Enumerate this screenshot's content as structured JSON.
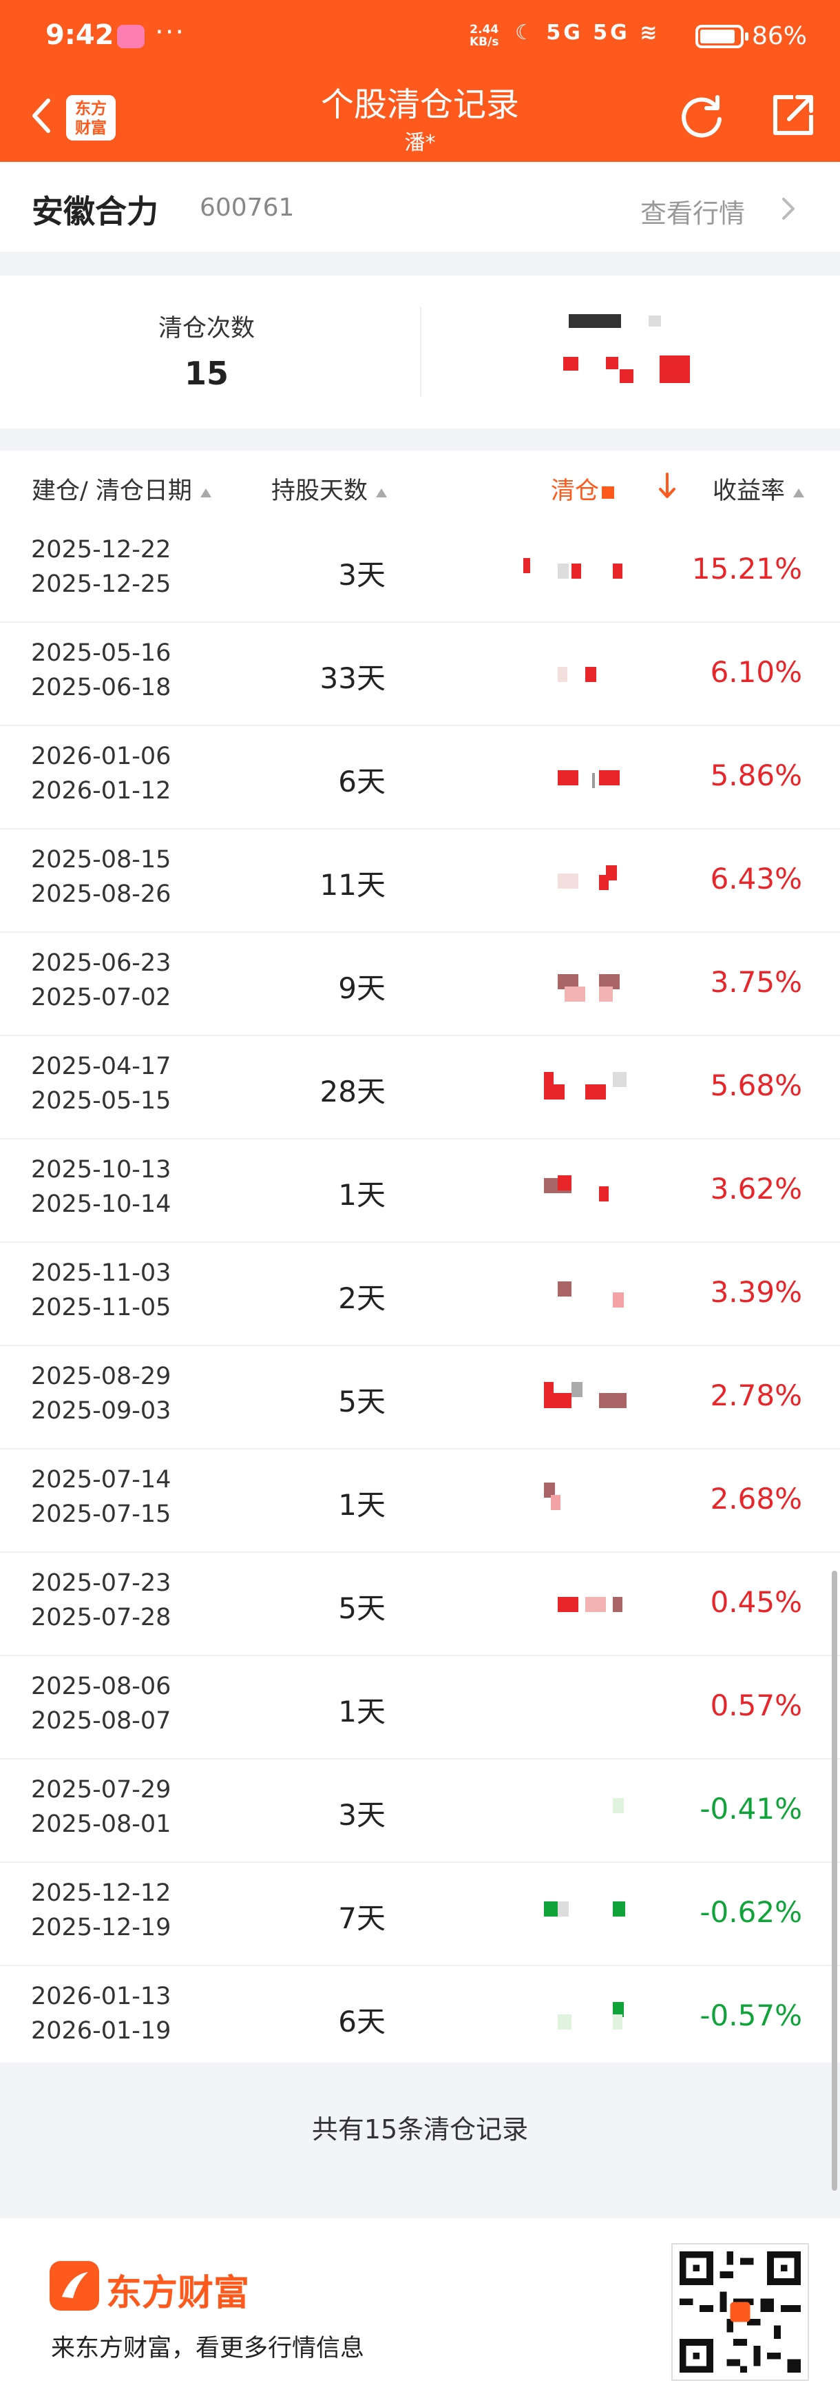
{
  "status_bar": {
    "time": "9:42",
    "net_speed": "2.44",
    "net_unit": "KB/s",
    "signal": "5G 5G",
    "battery": "86%"
  },
  "header": {
    "title": "个股清仓记录",
    "subtitle": "潘*",
    "logo_line1": "东方",
    "logo_line2": "财富"
  },
  "stock": {
    "name": "安徽合力",
    "code": "600761",
    "link": "查看行情"
  },
  "summary": {
    "count_label": "清仓次数",
    "count_value": "15"
  },
  "table": {
    "col_date": "建仓/ 清仓日期",
    "col_days": "持股天数",
    "col_amount": "清仓",
    "col_rate": "收益率",
    "rows": [
      {
        "buy": "2025-12-22",
        "sell": "2025-12-25",
        "days": "3天",
        "rate": "15.21%",
        "trend": "up"
      },
      {
        "buy": "2025-05-16",
        "sell": "2025-06-18",
        "days": "33天",
        "rate": "6.10%",
        "trend": "up"
      },
      {
        "buy": "2026-01-06",
        "sell": "2026-01-12",
        "days": "6天",
        "rate": "5.86%",
        "trend": "up"
      },
      {
        "buy": "2025-08-15",
        "sell": "2025-08-26",
        "days": "11天",
        "rate": "6.43%",
        "trend": "up"
      },
      {
        "buy": "2025-06-23",
        "sell": "2025-07-02",
        "days": "9天",
        "rate": "3.75%",
        "trend": "up"
      },
      {
        "buy": "2025-04-17",
        "sell": "2025-05-15",
        "days": "28天",
        "rate": "5.68%",
        "trend": "up"
      },
      {
        "buy": "2025-10-13",
        "sell": "2025-10-14",
        "days": "1天",
        "rate": "3.62%",
        "trend": "up"
      },
      {
        "buy": "2025-11-03",
        "sell": "2025-11-05",
        "days": "2天",
        "rate": "3.39%",
        "trend": "up"
      },
      {
        "buy": "2025-08-29",
        "sell": "2025-09-03",
        "days": "5天",
        "rate": "2.78%",
        "trend": "up"
      },
      {
        "buy": "2025-07-14",
        "sell": "2025-07-15",
        "days": "1天",
        "rate": "2.68%",
        "trend": "up"
      },
      {
        "buy": "2025-07-23",
        "sell": "2025-07-28",
        "days": "5天",
        "rate": "0.45%",
        "trend": "up"
      },
      {
        "buy": "2025-08-06",
        "sell": "2025-08-07",
        "days": "1天",
        "rate": "0.57%",
        "trend": "up"
      },
      {
        "buy": "2025-07-29",
        "sell": "2025-08-01",
        "days": "3天",
        "rate": "-0.41%",
        "trend": "down"
      },
      {
        "buy": "2025-12-12",
        "sell": "2025-12-19",
        "days": "7天",
        "rate": "-0.62%",
        "trend": "down"
      },
      {
        "buy": "2026-01-13",
        "sell": "2026-01-19",
        "days": "6天",
        "rate": "-0.57%",
        "trend": "down"
      }
    ],
    "footer": "共有15条清仓记录"
  },
  "banner": {
    "brand": "东方财富",
    "slogan": "来东方财富，看更多行情信息"
  },
  "colors": {
    "accent": "#ff5a1e",
    "up": "#e8262a",
    "down": "#0fa33a"
  },
  "icons": [
    "back-icon",
    "refresh-icon",
    "share-icon",
    "chevron-right-icon",
    "sort-down-arrow-icon",
    "qr-code"
  ]
}
